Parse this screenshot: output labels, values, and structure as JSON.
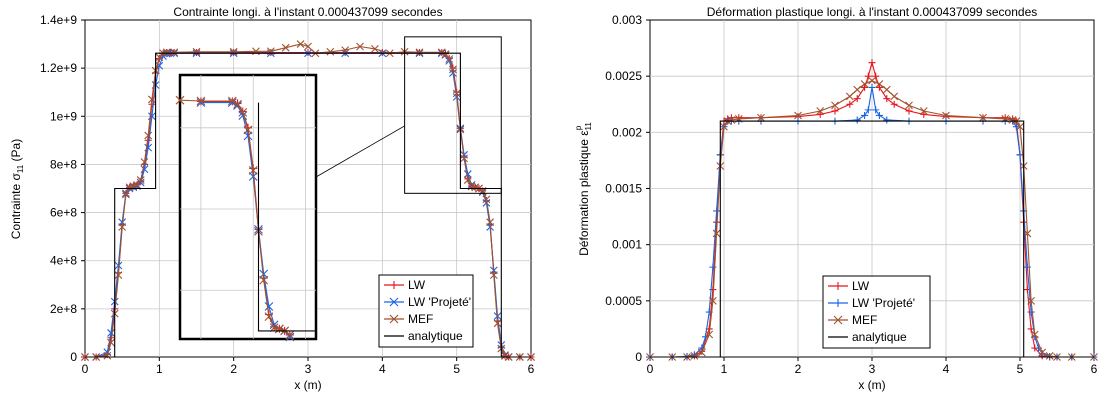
{
  "chart_data": [
    {
      "type": "line",
      "title": "Contrainte longi. à l'instant 0.000437099 secondes",
      "xlabel": "x (m)",
      "ylabel_main": "Contrainte σ",
      "ylabel_sub": "11",
      "ylabel_unit": " (Pa)",
      "xlim": [
        0,
        6
      ],
      "ylim": [
        0,
        1400000000
      ],
      "xticks": [
        0,
        1,
        2,
        3,
        4,
        5,
        6
      ],
      "xtick_labels": [
        "0",
        "1",
        "2",
        "3",
        "4",
        "5",
        "6"
      ],
      "yticks": [
        0,
        200000000,
        400000000,
        600000000,
        800000000,
        1000000000,
        1200000000,
        1400000000
      ],
      "ytick_labels": [
        "0",
        "2e+8",
        "4e+8",
        "6e+8",
        "8e+8",
        "1e+9",
        "1.2e+9",
        "1.4e+9"
      ],
      "grid": true,
      "legend_position": "bottom-right",
      "legend": [
        "LW",
        "LW 'Projeté'",
        "MEF",
        "analytique"
      ],
      "series": [
        {
          "name": "LW",
          "color": "#e8141c",
          "marker": "plus",
          "x": [
            0,
            0.15,
            0.3,
            0.35,
            0.4,
            0.45,
            0.5,
            0.55,
            0.6,
            0.65,
            0.7,
            0.75,
            0.8,
            0.85,
            0.9,
            0.95,
            1.0,
            1.05,
            1.1,
            1.15,
            1.2,
            1.5,
            2.0,
            2.5,
            3.0,
            3.5,
            4.0,
            4.5,
            4.8,
            4.85,
            4.9,
            4.95,
            5.0,
            5.05,
            5.1,
            5.15,
            5.2,
            5.25,
            5.3,
            5.35,
            5.4,
            5.45,
            5.5,
            5.55,
            5.6,
            5.65,
            5.7,
            5.85,
            6.0
          ],
          "y": [
            0,
            0,
            10000000,
            80000000,
            200000000,
            350000000,
            550000000,
            680000000,
            705000000,
            710000000,
            715000000,
            730000000,
            800000000,
            900000000,
            1050000000,
            1180000000,
            1240000000,
            1260000000,
            1265000000,
            1265000000,
            1265000000,
            1265000000,
            1265000000,
            1265000000,
            1265000000,
            1265000000,
            1265000000,
            1265000000,
            1265000000,
            1260000000,
            1240000000,
            1200000000,
            1100000000,
            950000000,
            830000000,
            740000000,
            710000000,
            705000000,
            700000000,
            690000000,
            650000000,
            550000000,
            350000000,
            150000000,
            40000000,
            5000000,
            0,
            0,
            0
          ]
        },
        {
          "name": "LW 'Projeté'",
          "color": "#1a64e6",
          "marker": "x",
          "x": [
            0,
            0.15,
            0.3,
            0.35,
            0.4,
            0.45,
            0.5,
            0.55,
            0.6,
            0.65,
            0.7,
            0.75,
            0.8,
            0.85,
            0.9,
            0.95,
            1.0,
            1.05,
            1.1,
            1.15,
            1.2,
            1.5,
            2.0,
            2.5,
            3.0,
            3.5,
            4.0,
            4.5,
            4.8,
            4.85,
            4.9,
            4.95,
            5.0,
            5.05,
            5.1,
            5.15,
            5.2,
            5.25,
            5.3,
            5.35,
            5.4,
            5.45,
            5.5,
            5.55,
            5.6,
            5.65,
            5.7,
            5.85,
            6.0
          ],
          "y": [
            0,
            0,
            20000000,
            100000000,
            230000000,
            380000000,
            560000000,
            680000000,
            700000000,
            705000000,
            710000000,
            725000000,
            780000000,
            870000000,
            1000000000,
            1130000000,
            1210000000,
            1250000000,
            1260000000,
            1262000000,
            1262000000,
            1262000000,
            1262000000,
            1262000000,
            1262000000,
            1262000000,
            1262000000,
            1262000000,
            1262000000,
            1255000000,
            1230000000,
            1180000000,
            1080000000,
            950000000,
            840000000,
            760000000,
            715000000,
            705000000,
            700000000,
            685000000,
            640000000,
            540000000,
            360000000,
            170000000,
            50000000,
            8000000,
            0,
            0,
            0
          ]
        },
        {
          "name": "MEF",
          "color": "#a0522d",
          "marker": "x",
          "x": [
            0,
            0.15,
            0.3,
            0.35,
            0.4,
            0.45,
            0.5,
            0.55,
            0.6,
            0.65,
            0.7,
            0.75,
            0.8,
            0.85,
            0.9,
            0.95,
            1.0,
            1.05,
            1.1,
            1.2,
            1.5,
            2.0,
            2.3,
            2.5,
            2.7,
            2.9,
            3.0,
            3.1,
            3.3,
            3.5,
            3.7,
            3.9,
            4.1,
            4.3,
            4.5,
            4.8,
            4.85,
            4.9,
            4.95,
            5.0,
            5.05,
            5.1,
            5.15,
            5.2,
            5.25,
            5.3,
            5.35,
            5.4,
            5.45,
            5.5,
            5.55,
            5.6,
            5.65,
            5.7,
            5.85,
            6.0
          ],
          "y": [
            0,
            0,
            5000000,
            60000000,
            180000000,
            340000000,
            540000000,
            675000000,
            705000000,
            710000000,
            715000000,
            735000000,
            810000000,
            920000000,
            1070000000,
            1190000000,
            1245000000,
            1262000000,
            1266000000,
            1266000000,
            1268000000,
            1268000000,
            1270000000,
            1270000000,
            1285000000,
            1300000000,
            1290000000,
            1262000000,
            1268000000,
            1275000000,
            1290000000,
            1280000000,
            1262000000,
            1268000000,
            1266000000,
            1266000000,
            1258000000,
            1238000000,
            1195000000,
            1095000000,
            945000000,
            825000000,
            735000000,
            708000000,
            705000000,
            700000000,
            690000000,
            655000000,
            560000000,
            340000000,
            140000000,
            35000000,
            4000000,
            0,
            0,
            0
          ]
        },
        {
          "name": "analytique",
          "color": "#000000",
          "marker": "none",
          "x": [
            0,
            0.4,
            0.4,
            0.95,
            0.95,
            5.05,
            5.05,
            5.6,
            5.6,
            6.0
          ],
          "y": [
            0,
            0,
            700000000,
            700000000,
            1262000000,
            1262000000,
            700000000,
            700000000,
            0,
            0
          ]
        }
      ]
    },
    {
      "type": "line",
      "title": "Déformation plastique longi. à l'instant 0.000437099 secondes",
      "xlabel": "x (m)",
      "ylabel_main": "Déformation plastique ε",
      "ylabel_sub": "11",
      "ylabel_sup": "p",
      "xlim": [
        0,
        6
      ],
      "ylim": [
        0,
        0.003
      ],
      "xticks": [
        0,
        1,
        2,
        3,
        4,
        5,
        6
      ],
      "xtick_labels": [
        "0",
        "1",
        "2",
        "3",
        "4",
        "5",
        "6"
      ],
      "yticks": [
        0,
        0.0005,
        0.001,
        0.0015,
        0.002,
        0.0025,
        0.003
      ],
      "ytick_labels": [
        "0",
        "0.0005",
        "0.001",
        "0.0015",
        "0.002",
        "0.0025",
        "0.003"
      ],
      "grid": true,
      "legend_position": "bottom-center",
      "legend": [
        "LW",
        "LW 'Projeté'",
        "MEF",
        "analytique"
      ],
      "series": [
        {
          "name": "LW",
          "color": "#e8141c",
          "marker": "plus",
          "x": [
            0,
            0.3,
            0.5,
            0.6,
            0.7,
            0.8,
            0.85,
            0.9,
            0.95,
            1.0,
            1.05,
            1.1,
            1.2,
            1.5,
            2.0,
            2.3,
            2.5,
            2.7,
            2.8,
            2.9,
            2.95,
            3.0,
            3.05,
            3.1,
            3.2,
            3.3,
            3.5,
            3.7,
            4.0,
            4.5,
            4.8,
            4.9,
            4.95,
            5.0,
            5.05,
            5.1,
            5.15,
            5.2,
            5.3,
            5.4,
            5.5,
            5.7,
            6.0
          ],
          "y": [
            0,
            0,
            0,
            1e-05,
            5e-05,
            0.00025,
            0.0006,
            0.0012,
            0.0018,
            0.0021,
            0.00212,
            0.00213,
            0.00213,
            0.00213,
            0.00214,
            0.00216,
            0.00219,
            0.00225,
            0.0023,
            0.0024,
            0.0025,
            0.00262,
            0.0025,
            0.0024,
            0.0023,
            0.00225,
            0.00219,
            0.00216,
            0.00214,
            0.00213,
            0.00213,
            0.00212,
            0.0021,
            0.0018,
            0.0012,
            0.0006,
            0.00025,
            8e-05,
            1e-05,
            0,
            0,
            0,
            0
          ]
        },
        {
          "name": "LW 'Projeté'",
          "color": "#1a64e6",
          "marker": "plus",
          "x": [
            0,
            0.3,
            0.5,
            0.6,
            0.7,
            0.75,
            0.8,
            0.85,
            0.9,
            0.95,
            1.0,
            1.05,
            1.1,
            1.2,
            1.5,
            2.0,
            2.5,
            2.8,
            2.9,
            2.95,
            3.0,
            3.05,
            3.1,
            3.2,
            3.5,
            4.0,
            4.5,
            4.8,
            4.9,
            4.95,
            5.0,
            5.05,
            5.1,
            5.15,
            5.2,
            5.25,
            5.3,
            5.4,
            5.5,
            5.7,
            6.0
          ],
          "y": [
            0,
            0,
            5e-06,
            2e-05,
            8e-05,
            0.00018,
            0.0004,
            0.0008,
            0.0013,
            0.0018,
            0.00205,
            0.0021,
            0.0021,
            0.0021,
            0.0021,
            0.0021,
            0.0021,
            0.00211,
            0.00215,
            0.0022,
            0.0024,
            0.0022,
            0.00215,
            0.00211,
            0.0021,
            0.0021,
            0.0021,
            0.0021,
            0.0021,
            0.00205,
            0.0018,
            0.0013,
            0.0008,
            0.0004,
            0.00018,
            8e-05,
            3e-05,
            5e-06,
            0,
            0,
            0
          ]
        },
        {
          "name": "MEF",
          "color": "#a0522d",
          "marker": "x",
          "x": [
            0,
            0.3,
            0.5,
            0.6,
            0.7,
            0.8,
            0.85,
            0.9,
            0.95,
            1.0,
            1.05,
            1.1,
            1.2,
            1.5,
            2.0,
            2.3,
            2.5,
            2.7,
            2.8,
            2.9,
            3.0,
            3.1,
            3.2,
            3.3,
            3.5,
            3.7,
            4.0,
            4.5,
            4.8,
            4.9,
            4.95,
            5.0,
            5.05,
            5.1,
            5.15,
            5.2,
            5.3,
            5.4,
            5.5,
            5.7,
            6.0
          ],
          "y": [
            0,
            0,
            0,
            1e-05,
            4e-05,
            0.0002,
            0.0005,
            0.0011,
            0.0017,
            0.00205,
            0.0021,
            0.00211,
            0.00212,
            0.00213,
            0.00215,
            0.00219,
            0.00224,
            0.00232,
            0.00238,
            0.00243,
            0.00246,
            0.00243,
            0.00238,
            0.00232,
            0.00224,
            0.00219,
            0.00215,
            0.00213,
            0.00212,
            0.00211,
            0.0021,
            0.00205,
            0.0017,
            0.0011,
            0.0005,
            0.0002,
            4e-05,
            1e-05,
            0,
            0,
            0
          ]
        },
        {
          "name": "analytique",
          "color": "#000000",
          "marker": "none",
          "x": [
            0,
            0.95,
            0.95,
            5.05,
            5.05,
            6.0
          ],
          "y": [
            0,
            0,
            0.0021,
            0.0021,
            0,
            0
          ]
        }
      ]
    }
  ]
}
